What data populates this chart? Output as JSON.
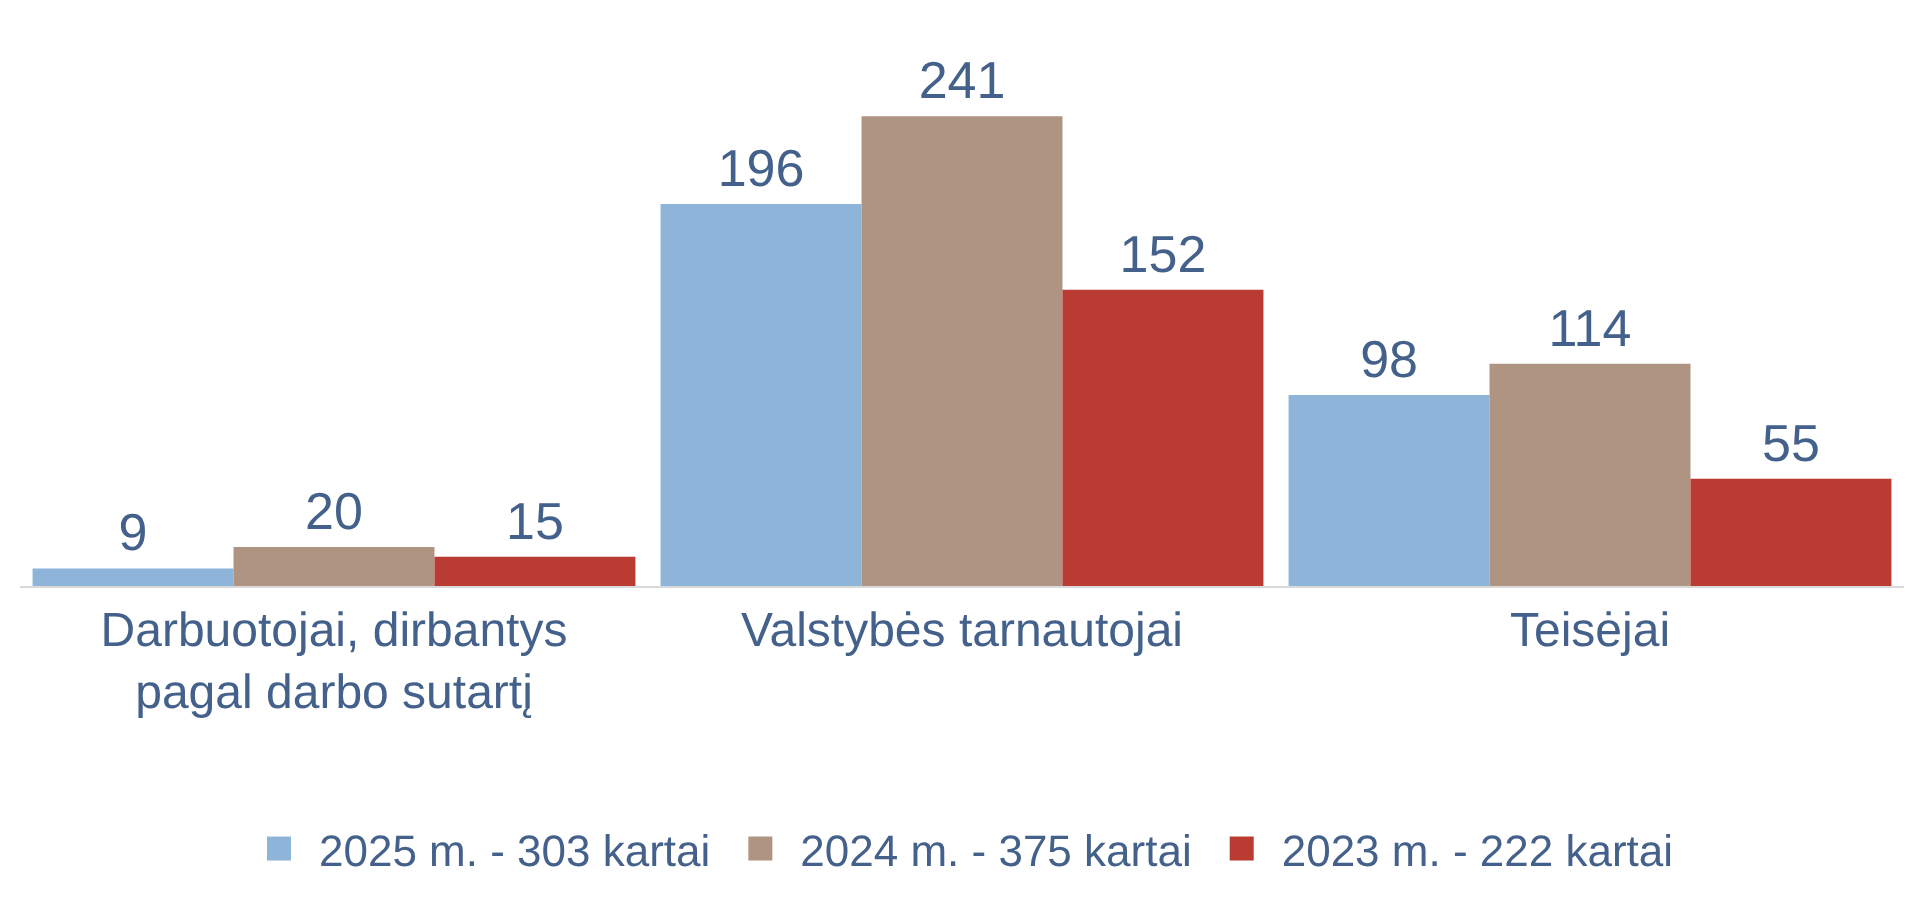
{
  "chart_data": {
    "type": "bar",
    "categories": [
      "Darbuotojai, dirbantys pagal darbo sutartį",
      "Valstybės tarnautojai",
      "Teisėjai"
    ],
    "series": [
      {
        "name": "2025 m. - 303 kartai",
        "color": "#8fb4d9",
        "values": [
          9,
          196,
          98
        ]
      },
      {
        "name": "2024 m. - 375 kartai",
        "color": "#ae9481",
        "values": [
          20,
          241,
          114
        ]
      },
      {
        "name": "2023 m. - 222 kartai",
        "color": "#b93b32",
        "values": [
          15,
          152,
          55
        ]
      }
    ],
    "data_labels": true,
    "legend": "bottom",
    "grid": false
  }
}
